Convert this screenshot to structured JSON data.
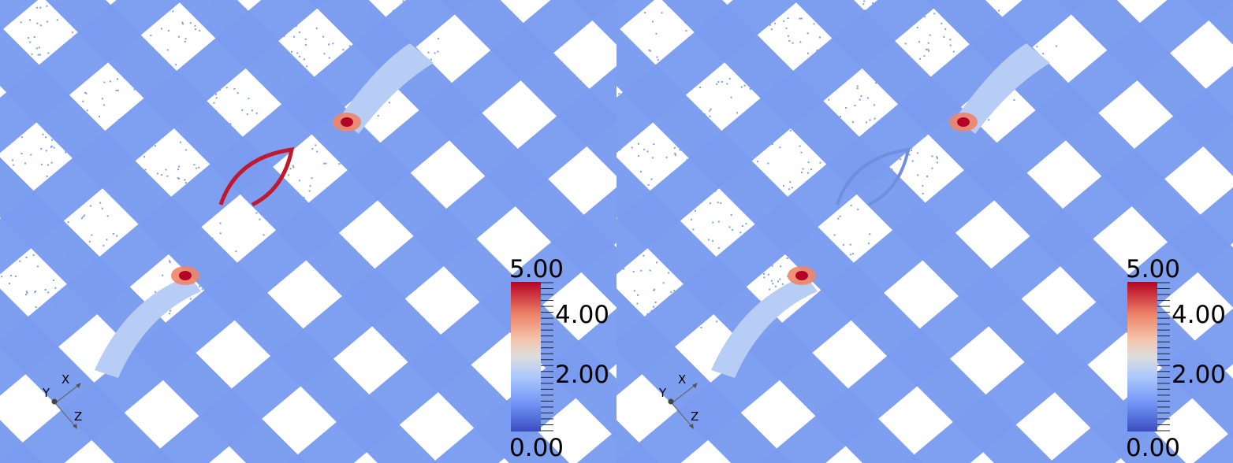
{
  "panels": [
    {
      "name": "left",
      "colorbar": {
        "max_label": "5.00",
        "labels": [
          "4.00",
          "2.00"
        ],
        "min_label": "0.00",
        "range": [
          0,
          5
        ],
        "colormap": "cool-to-warm"
      },
      "axes": {
        "x": "X",
        "y": "Y",
        "z": "Z"
      },
      "hotspot_intensity": "high"
    },
    {
      "name": "right",
      "colorbar": {
        "max_label": "5.00",
        "labels": [
          "4.00",
          "2.00"
        ],
        "min_label": "0.00",
        "range": [
          0,
          5
        ],
        "colormap": "cool-to-warm"
      },
      "axes": {
        "x": "X",
        "y": "Y",
        "z": "Z"
      },
      "hotspot_intensity": "low"
    }
  ],
  "colors": {
    "base": "#7b9cf0",
    "low": "#3b4cc0",
    "mid": "#dddddd",
    "high": "#b40426"
  }
}
